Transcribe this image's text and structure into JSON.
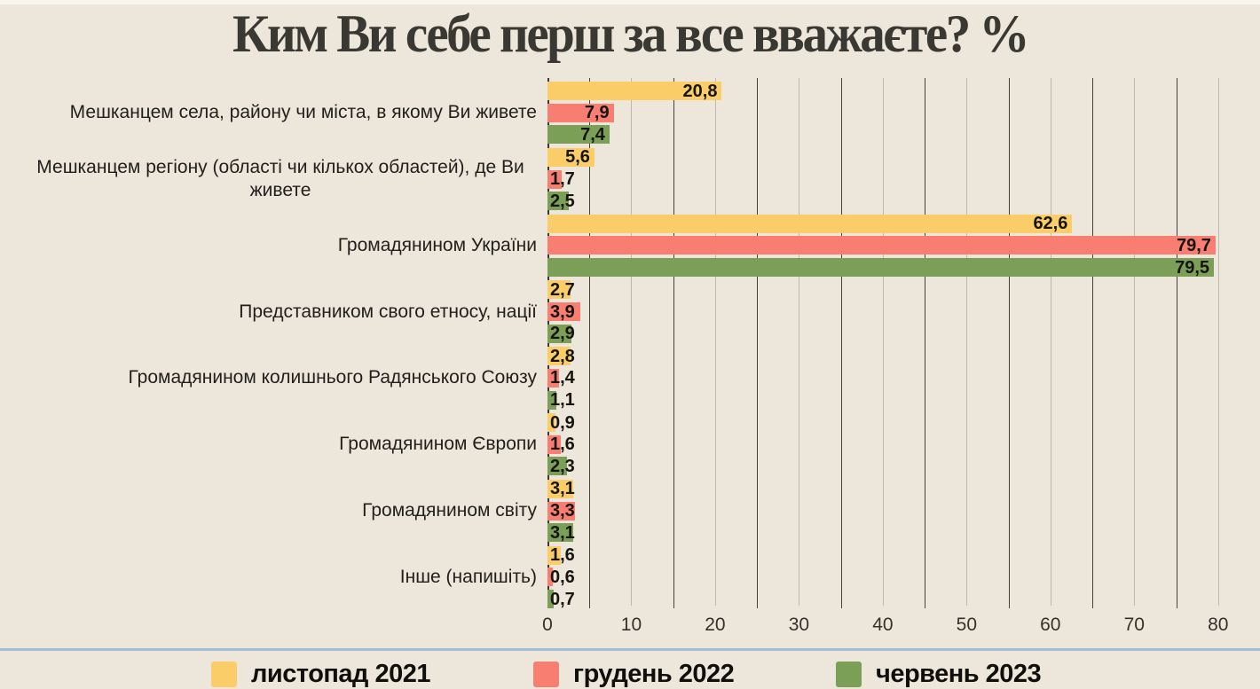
{
  "title": "Ким Ви себе перш за все вважаєте? %",
  "colors": {
    "background": "#EDE7DB",
    "title_text": "#3A3832",
    "category_text": "#211F1B",
    "value_text": "#15140F",
    "grid_dark": "#46433C",
    "grid_light": "#BFB8AB",
    "axis_label_text": "#34312B",
    "legend_separator": "#A2BDD4",
    "series_yellow": "#FACD69",
    "series_red": "#F87E72",
    "series_green": "#7C9F58"
  },
  "chart_data": {
    "type": "bar",
    "orientation": "horizontal",
    "title": "Ким Ви себе перш за все вважаєте? %",
    "categories": [
      "Мешканцем села, району чи міста, в якому Ви живете",
      "Мешканцем регіону (області чи кількох областей), де Ви живете",
      "Громадянином України",
      "Представником свого етносу, нації",
      "Громадянином колишнього Радянського Союзу",
      "Громадянином Європи",
      "Громадянином світу",
      "Інше (напишіть)"
    ],
    "series": [
      {
        "name": "листопад 2021",
        "color": "#FACD69",
        "values": [
          20.8,
          5.6,
          62.6,
          2.7,
          2.8,
          0.9,
          3.1,
          1.6
        ]
      },
      {
        "name": "грудень 2022",
        "color": "#F87E72",
        "values": [
          7.9,
          1.7,
          79.7,
          3.9,
          1.4,
          1.6,
          3.3,
          0.6
        ]
      },
      {
        "name": "червень 2023",
        "color": "#7C9F58",
        "values": [
          7.4,
          2.5,
          79.5,
          2.9,
          1.1,
          2.3,
          3.1,
          0.7
        ]
      }
    ],
    "x_axis": {
      "ticks": [
        0,
        10,
        20,
        30,
        40,
        50,
        60,
        70,
        80
      ],
      "minor_step": 5,
      "max_extent": 85
    },
    "grid": true,
    "legend_position": "bottom",
    "decimal_separator": ",",
    "value_labels": "shown at end of each bar"
  }
}
